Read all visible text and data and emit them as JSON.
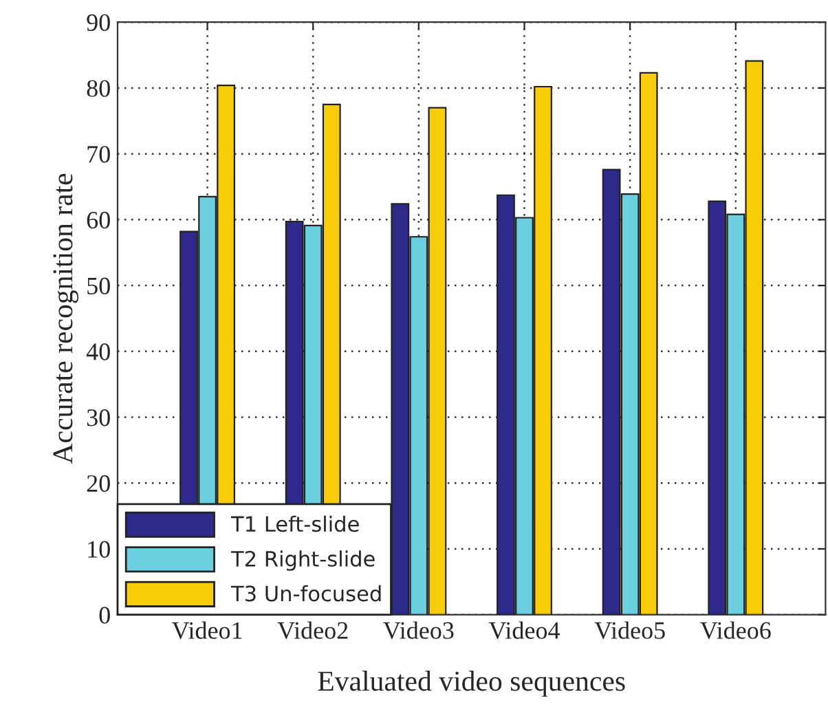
{
  "chart_data": {
    "type": "bar",
    "xlabel": "Evaluated video sequences",
    "ylabel": "Accurate recognition rate",
    "categories": [
      "Video1",
      "Video2",
      "Video3",
      "Video4",
      "Video5",
      "Video6"
    ],
    "series": [
      {
        "name": "T1 Left-slide",
        "color": "#2e2a8c",
        "values": [
          58.2,
          59.7,
          62.4,
          63.7,
          67.6,
          62.8
        ]
      },
      {
        "name": "T2 Right-slide",
        "color": "#6ccfe0",
        "values": [
          63.5,
          59.1,
          57.4,
          60.3,
          63.9,
          60.8
        ]
      },
      {
        "name": "T3 Un-focused",
        "color": "#f9cc0a",
        "values": [
          80.4,
          77.5,
          77.0,
          80.2,
          82.3,
          84.1
        ]
      }
    ],
    "ylim": [
      0,
      90
    ],
    "yticks": [
      0,
      10,
      20,
      30,
      40,
      50,
      60,
      70,
      80,
      90
    ],
    "grid": true,
    "legend": "bottom left"
  }
}
